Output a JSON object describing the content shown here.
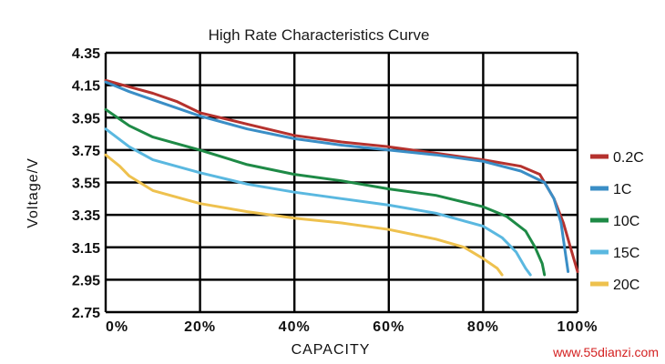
{
  "chart_data": {
    "type": "line",
    "title": "High Rate Characteristics Curve",
    "xlabel": "CAPACITY",
    "ylabel": "Voltage/V",
    "xlim": [
      0,
      100
    ],
    "ylim": [
      2.75,
      4.35
    ],
    "x_ticks": [
      "0%",
      "20%",
      "40%",
      "60%",
      "80%",
      "100%"
    ],
    "y_ticks": [
      "4.35",
      "4.15",
      "3.95",
      "3.75",
      "3.55",
      "3.35",
      "3.15",
      "2.95",
      "2.75"
    ],
    "grid": true,
    "legend_position": "right",
    "series": [
      {
        "name": "0.2C",
        "color": "#b5322e",
        "points": [
          [
            0,
            4.18
          ],
          [
            5,
            4.14
          ],
          [
            10,
            4.1
          ],
          [
            15,
            4.05
          ],
          [
            20,
            3.98
          ],
          [
            30,
            3.91
          ],
          [
            40,
            3.84
          ],
          [
            50,
            3.8
          ],
          [
            60,
            3.77
          ],
          [
            70,
            3.73
          ],
          [
            80,
            3.69
          ],
          [
            88,
            3.65
          ],
          [
            92,
            3.6
          ],
          [
            95,
            3.45
          ],
          [
            97,
            3.3
          ],
          [
            98.5,
            3.15
          ],
          [
            99.5,
            3.05
          ],
          [
            100,
            3.0
          ]
        ]
      },
      {
        "name": "1C",
        "color": "#3a8ec6",
        "points": [
          [
            0,
            4.17
          ],
          [
            5,
            4.11
          ],
          [
            10,
            4.06
          ],
          [
            15,
            4.01
          ],
          [
            20,
            3.96
          ],
          [
            30,
            3.88
          ],
          [
            40,
            3.82
          ],
          [
            50,
            3.78
          ],
          [
            60,
            3.75
          ],
          [
            70,
            3.72
          ],
          [
            80,
            3.68
          ],
          [
            88,
            3.62
          ],
          [
            93,
            3.55
          ],
          [
            95,
            3.45
          ],
          [
            96.5,
            3.3
          ],
          [
            97.5,
            3.1
          ],
          [
            98,
            3.0
          ]
        ]
      },
      {
        "name": "10C",
        "color": "#1e8a46",
        "points": [
          [
            0,
            4.0
          ],
          [
            5,
            3.9
          ],
          [
            10,
            3.83
          ],
          [
            20,
            3.75
          ],
          [
            30,
            3.66
          ],
          [
            40,
            3.6
          ],
          [
            50,
            3.56
          ],
          [
            60,
            3.51
          ],
          [
            70,
            3.47
          ],
          [
            80,
            3.4
          ],
          [
            85,
            3.34
          ],
          [
            89,
            3.25
          ],
          [
            91,
            3.15
          ],
          [
            92.5,
            3.05
          ],
          [
            93,
            2.98
          ]
        ]
      },
      {
        "name": "15C",
        "color": "#5ab8e0",
        "points": [
          [
            0,
            3.88
          ],
          [
            5,
            3.77
          ],
          [
            10,
            3.69
          ],
          [
            20,
            3.61
          ],
          [
            30,
            3.54
          ],
          [
            40,
            3.49
          ],
          [
            50,
            3.45
          ],
          [
            60,
            3.41
          ],
          [
            70,
            3.36
          ],
          [
            80,
            3.28
          ],
          [
            84,
            3.21
          ],
          [
            87,
            3.12
          ],
          [
            89,
            3.02
          ],
          [
            90,
            2.98
          ]
        ]
      },
      {
        "name": "20C",
        "color": "#eec14e",
        "points": [
          [
            0,
            3.72
          ],
          [
            3,
            3.65
          ],
          [
            5,
            3.59
          ],
          [
            10,
            3.5
          ],
          [
            20,
            3.42
          ],
          [
            30,
            3.37
          ],
          [
            40,
            3.33
          ],
          [
            50,
            3.3
          ],
          [
            60,
            3.26
          ],
          [
            70,
            3.2
          ],
          [
            76,
            3.15
          ],
          [
            80,
            3.08
          ],
          [
            83,
            3.02
          ],
          [
            84,
            2.98
          ]
        ]
      }
    ]
  },
  "watermark": "www.55dianzi.com"
}
